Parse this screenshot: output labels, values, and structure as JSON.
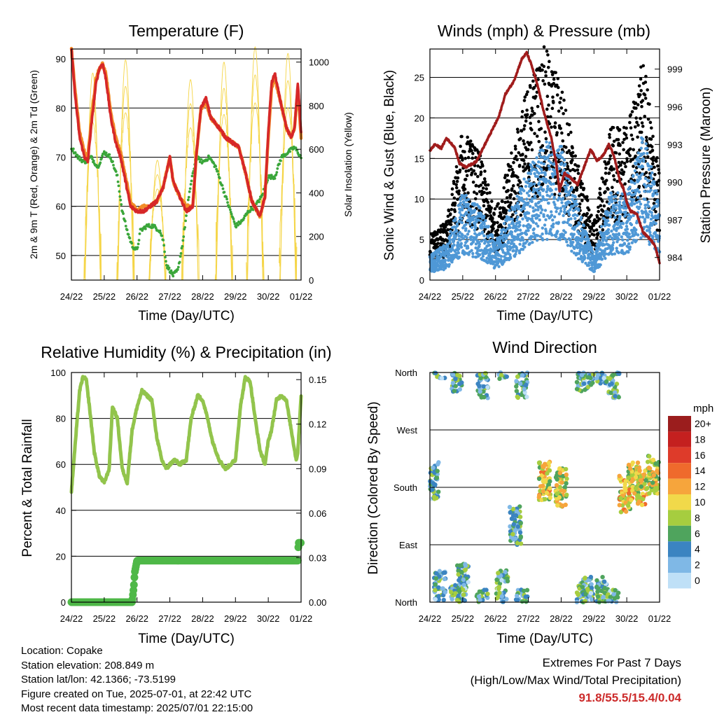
{
  "chart_data": [
    {
      "type": "line",
      "title": "Temperature (F)",
      "xlabel": "Time (Day/UTC)",
      "ylabel": "2m & 9m T (Red, Orange) & 2m Td (Green)",
      "y2label": "Solar Insolation (Yellow)",
      "x_ticks": [
        "24/22",
        "25/22",
        "26/22",
        "27/22",
        "28/22",
        "29/22",
        "30/22",
        "01/22"
      ],
      "xlim": [
        0,
        7
      ],
      "ylim": [
        45,
        92
      ],
      "y_ticks": [
        50,
        60,
        70,
        80,
        90
      ],
      "y2lim": [
        0,
        1060
      ],
      "y2_ticks": [
        0,
        200,
        400,
        600,
        800,
        1000
      ],
      "grid": "horizontal",
      "series": [
        {
          "name": "2m T",
          "color": "#d62728",
          "x": [
            0.0,
            0.12,
            0.25,
            0.4,
            0.5,
            0.6,
            0.75,
            0.85,
            0.95,
            1.05,
            1.2,
            1.35,
            1.5,
            1.62,
            1.8,
            2.0,
            2.2,
            2.4,
            2.6,
            2.8,
            2.9,
            3.0,
            3.1,
            3.3,
            3.5,
            3.7,
            3.8,
            3.95,
            4.1,
            4.25,
            4.5,
            4.7,
            4.9,
            5.1,
            5.3,
            5.5,
            5.75,
            5.9,
            6.0,
            6.1,
            6.2,
            6.35,
            6.55,
            6.7,
            6.8,
            6.9,
            7.0
          ],
          "values": [
            92,
            82,
            74,
            70,
            69,
            76,
            85,
            88,
            89,
            86,
            78,
            73,
            70,
            66,
            60,
            59,
            59,
            60,
            61,
            64,
            67,
            70,
            65,
            62,
            59,
            60,
            70,
            80,
            82,
            78,
            76,
            74,
            73,
            72,
            67,
            61,
            58,
            62,
            75,
            85,
            87,
            82,
            76,
            74,
            76,
            85,
            75
          ]
        },
        {
          "name": "9m T",
          "color": "#f28c28",
          "x": [
            0.0,
            0.12,
            0.25,
            0.4,
            0.5,
            0.6,
            0.75,
            0.85,
            0.95,
            1.05,
            1.2,
            1.35,
            1.5,
            1.62,
            1.8,
            2.0,
            2.2,
            2.4,
            2.6,
            2.8,
            2.9,
            3.0,
            3.1,
            3.3,
            3.5,
            3.7,
            3.8,
            3.95,
            4.1,
            4.25,
            4.5,
            4.7,
            4.9,
            5.1,
            5.3,
            5.5,
            5.75,
            5.9,
            6.0,
            6.1,
            6.2,
            6.35,
            6.55,
            6.7,
            6.8,
            6.9,
            7.0
          ],
          "values": [
            92,
            83,
            75,
            71,
            70,
            77,
            86,
            88,
            89,
            87,
            79,
            74,
            71,
            67,
            61,
            59,
            60,
            60,
            61,
            64,
            67,
            70,
            65,
            62,
            60,
            60,
            70,
            80,
            81,
            78,
            76,
            74,
            73,
            72,
            67,
            61,
            58,
            62,
            74,
            84,
            86,
            82,
            76,
            74,
            76,
            84,
            74
          ]
        },
        {
          "name": "2m Td",
          "color": "#3aa63a",
          "x": [
            0.0,
            0.2,
            0.4,
            0.6,
            0.8,
            1.0,
            1.2,
            1.4,
            1.55,
            1.7,
            1.85,
            2.0,
            2.1,
            2.3,
            2.5,
            2.7,
            2.8,
            2.9,
            3.0,
            3.1,
            3.25,
            3.4,
            3.6,
            3.8,
            4.0,
            4.2,
            4.4,
            4.6,
            4.8,
            5.0,
            5.2,
            5.4,
            5.6,
            5.8,
            6.0,
            6.2,
            6.4,
            6.6,
            6.8,
            7.0
          ],
          "values": [
            72,
            70,
            69,
            70,
            68,
            71,
            70,
            66,
            59,
            55,
            52,
            51,
            55,
            56,
            56,
            55,
            53,
            48,
            47,
            46,
            47,
            53,
            63,
            70,
            69,
            70,
            68,
            64,
            60,
            56,
            57,
            59,
            60,
            62,
            66,
            66,
            70,
            71,
            72,
            70
          ]
        },
        {
          "name": "Solar Insolation",
          "color": "#f5d547",
          "axis": "y2",
          "type": "daily-peaks",
          "x": [
            0.65,
            1.65,
            2.62,
            3.63,
            4.65,
            5.6,
            6.6
          ],
          "values": [
            950,
            1010,
            550,
            920,
            1000,
            1070,
            1040
          ]
        }
      ]
    },
    {
      "type": "scatter",
      "title": "Winds (mph) & Pressure (mb)",
      "xlabel": "Time (Day/UTC)",
      "ylabel": "Sonic Wind & Gust (Blue, Black)",
      "y2label": "Station Pressure (Maroon)",
      "x_ticks": [
        "24/22",
        "25/22",
        "26/22",
        "27/22",
        "28/22",
        "29/22",
        "30/22",
        "01/22"
      ],
      "xlim": [
        0,
        7
      ],
      "ylim": [
        0,
        28.5
      ],
      "y_ticks": [
        0,
        5,
        10,
        15,
        20,
        25
      ],
      "y2lim": [
        982.2,
        1000.6
      ],
      "y2_ticks": [
        984,
        987,
        990,
        993,
        996,
        999
      ],
      "grid": "horizontal",
      "series": [
        {
          "name": "Sonic Wind",
          "color": "#4f98d6",
          "type": "dense",
          "x": [
            0,
            0.5,
            1.0,
            1.5,
            2.0,
            2.5,
            3.0,
            3.5,
            4.0,
            4.5,
            5.0,
            5.5,
            6.0,
            6.5,
            7.0
          ],
          "values": [
            2,
            3,
            7,
            6,
            3,
            6,
            9,
            11,
            11,
            6,
            2,
            7,
            7,
            12,
            6
          ]
        },
        {
          "name": "Gust",
          "color": "#000000",
          "type": "dense",
          "x": [
            0,
            0.5,
            1.0,
            1.5,
            2.0,
            2.5,
            3.0,
            3.5,
            4.0,
            4.5,
            5.0,
            5.5,
            6.0,
            6.5,
            7.0
          ],
          "values": [
            4,
            5,
            13,
            11,
            6,
            11,
            17,
            20,
            17,
            10,
            5,
            13,
            13,
            19,
            9
          ]
        },
        {
          "name": "Station Pressure",
          "color": "#a01c1c",
          "axis": "y2",
          "x": [
            0.0,
            0.15,
            0.35,
            0.5,
            0.75,
            0.9,
            1.1,
            1.4,
            1.6,
            1.85,
            2.1,
            2.3,
            2.55,
            2.8,
            2.95,
            3.1,
            3.3,
            3.5,
            3.7,
            3.85,
            3.95,
            4.1,
            4.3,
            4.5,
            4.7,
            4.9,
            5.1,
            5.3,
            5.45,
            5.6,
            5.8,
            5.9,
            6.0,
            6.1,
            6.3,
            6.5,
            6.7,
            6.85,
            7.0
          ],
          "values": [
            992.5,
            993,
            992.7,
            993.5,
            992.8,
            991.5,
            991.2,
            991.6,
            992.6,
            993.9,
            995.2,
            997,
            998,
            999.8,
            1000.3,
            999.3,
            997.5,
            995.3,
            993.5,
            991.5,
            989.3,
            990.7,
            990.3,
            989.8,
            991.2,
            992.6,
            991.7,
            992.2,
            993,
            992.2,
            990,
            989.5,
            988.4,
            987.7,
            987.5,
            986,
            985.5,
            985,
            983.6
          ]
        }
      ]
    },
    {
      "type": "line",
      "title": "Relative Humidity (%) & Precipitation (in)",
      "xlabel": "Time (Day/UTC)",
      "ylabel": "Percent & Total Rainfall",
      "x_ticks": [
        "24/22",
        "25/22",
        "26/22",
        "27/22",
        "28/22",
        "29/22",
        "30/22",
        "01/22"
      ],
      "xlim": [
        0,
        7
      ],
      "ylim": [
        0,
        100
      ],
      "y_ticks": [
        0,
        20,
        40,
        60,
        80,
        100
      ],
      "y2lim": [
        0,
        0.1548
      ],
      "y2_ticks": [
        "0.00",
        "0.03",
        "0.06",
        "0.09",
        "0.12",
        "0.15"
      ],
      "grid": "horizontal",
      "series": [
        {
          "name": "Relative Humidity",
          "color": "#92c44c",
          "x": [
            0.0,
            0.15,
            0.25,
            0.35,
            0.45,
            0.55,
            0.7,
            0.85,
            1.0,
            1.15,
            1.25,
            1.4,
            1.55,
            1.7,
            1.85,
            2.0,
            2.15,
            2.3,
            2.45,
            2.6,
            2.75,
            2.9,
            3.0,
            3.15,
            3.3,
            3.5,
            3.65,
            3.85,
            4.0,
            4.15,
            4.3,
            4.5,
            4.7,
            4.85,
            5.0,
            5.15,
            5.3,
            5.45,
            5.6,
            5.75,
            5.9,
            6.0,
            6.1,
            6.25,
            6.4,
            6.55,
            6.7,
            6.85,
            6.9,
            7.0
          ],
          "values": [
            48,
            75,
            92,
            98,
            97,
            85,
            65,
            55,
            52,
            58,
            85,
            80,
            58,
            52,
            75,
            85,
            92,
            90,
            88,
            72,
            62,
            58,
            60,
            62,
            60,
            62,
            80,
            90,
            88,
            80,
            70,
            62,
            58,
            60,
            62,
            85,
            98,
            96,
            80,
            66,
            60,
            70,
            75,
            88,
            90,
            88,
            75,
            62,
            65,
            90
          ]
        },
        {
          "name": "Total Precipitation",
          "color": "#4fb848",
          "axis": "y2",
          "x": [
            0.0,
            1.0,
            1.85,
            1.9,
            1.93,
            2.0,
            2.5,
            3.0,
            4.0,
            5.0,
            6.0,
            6.9,
            6.92,
            7.0
          ],
          "values": [
            0.0,
            0.0,
            0.0,
            0.01,
            0.02,
            0.028,
            0.028,
            0.028,
            0.028,
            0.028,
            0.028,
            0.028,
            0.04,
            0.04
          ]
        }
      ]
    },
    {
      "type": "scatter",
      "title": "Wind Direction",
      "xlabel": "Time (Day/UTC)",
      "ylabel": "Direction (Colored By Speed)",
      "x_ticks": [
        "24/22",
        "25/22",
        "26/22",
        "27/22",
        "28/22",
        "29/22",
        "30/22",
        "01/22"
      ],
      "xlim": [
        0,
        7
      ],
      "y_ticks": [
        "North",
        "East",
        "South",
        "West",
        "North"
      ],
      "grid": "horizontal",
      "colorbar": {
        "title": "mph",
        "labels": [
          "20+",
          "18",
          "16",
          "14",
          "12",
          "10",
          "8",
          "6",
          "4",
          "2",
          "0"
        ],
        "colors": [
          "#9b1d1d",
          "#c4201f",
          "#de3b2a",
          "#ef6a2c",
          "#f6a53c",
          "#f1d94a",
          "#a6cd3f",
          "#4fa45d",
          "#3b84c1",
          "#7fb8e6",
          "#bfe0f7"
        ]
      },
      "series": [
        {
          "name": "Wind Direction",
          "type": "clusters",
          "x": [
            0.1,
            0.3,
            0.8,
            1.0,
            1.6,
            2.2,
            2.6,
            2.8,
            3.5,
            4.0,
            4.65,
            4.8,
            5.25,
            5.6,
            5.95,
            6.2,
            6.45,
            6.8
          ],
          "direction_deg": [
            190,
            20,
            360,
            30,
            350,
            20,
            120,
            350,
            190,
            180,
            360,
            10,
            10,
            350,
            170,
            190,
            180,
            200
          ]
        }
      ]
    }
  ],
  "footer": {
    "location": "Location: Copake",
    "elevation": "Station elevation: 208.849 m",
    "latlon": "Station lat/lon: 42.1366; -73.5199",
    "created": "Figure created on Tue, 2025-07-01, at 22:42 UTC",
    "recent": "Most recent data timestamp: 2025/07/01 22:15:00"
  },
  "extremes": {
    "title": "Extremes For Past 7 Days",
    "subtitle": "(High/Low/Max Wind/Total Precipitation)",
    "values": "91.8/55.5/15.4/0.04"
  }
}
